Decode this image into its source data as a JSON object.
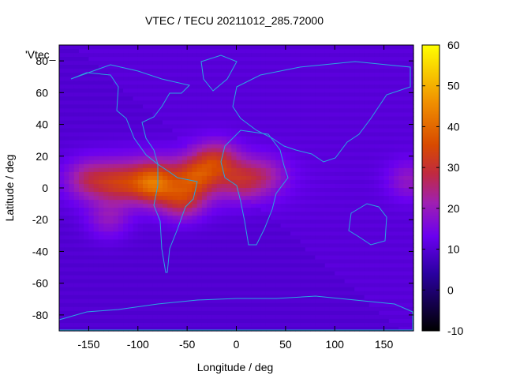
{
  "chart_data": {
    "type": "heatmap",
    "title": "VTEC / TECU 20211012_285.72000",
    "xlabel": "Longitude / deg",
    "ylabel": "Latitude / deg",
    "legend_key": "'Vtec_",
    "xlim": [
      -180,
      180
    ],
    "ylim": [
      -90,
      90
    ],
    "x_ticks": [
      -150,
      -100,
      -50,
      0,
      50,
      100,
      150
    ],
    "x_tick_labels": [
      "-150",
      "-100",
      "-50",
      "0",
      "50",
      "100",
      "150"
    ],
    "y_ticks": [
      80,
      60,
      40,
      20,
      0,
      -20,
      -40,
      -60,
      -80
    ],
    "y_tick_labels": [
      "80",
      "60",
      "40",
      "20",
      "0",
      "-20",
      "-40",
      "-60",
      "-80"
    ],
    "colorbar": {
      "range": [
        -10,
        60
      ],
      "ticks": [
        60,
        50,
        40,
        30,
        20,
        10,
        0,
        -10
      ],
      "tick_labels": [
        "60",
        "50",
        "40",
        "30",
        "20",
        "10",
        "0",
        "-10"
      ]
    },
    "cell_deg": {
      "lon": 5,
      "lat": 2.5
    },
    "background_value": 10,
    "anomalies": [
      {
        "lon": -85,
        "lat": 3,
        "value": 50
      },
      {
        "lon": -120,
        "lat": 3,
        "value": 33
      },
      {
        "lon": -150,
        "lat": 5,
        "value": 30
      },
      {
        "lon": -55,
        "lat": -8,
        "value": 37
      },
      {
        "lon": -40,
        "lat": 8,
        "value": 37
      },
      {
        "lon": -20,
        "lat": 18,
        "value": 35
      },
      {
        "lon": 5,
        "lat": 5,
        "value": 30
      },
      {
        "lon": 30,
        "lat": 8,
        "value": 24
      },
      {
        "lon": -130,
        "lat": -20,
        "value": 25
      },
      {
        "lon": 175,
        "lat": 5,
        "value": 25
      }
    ]
  }
}
